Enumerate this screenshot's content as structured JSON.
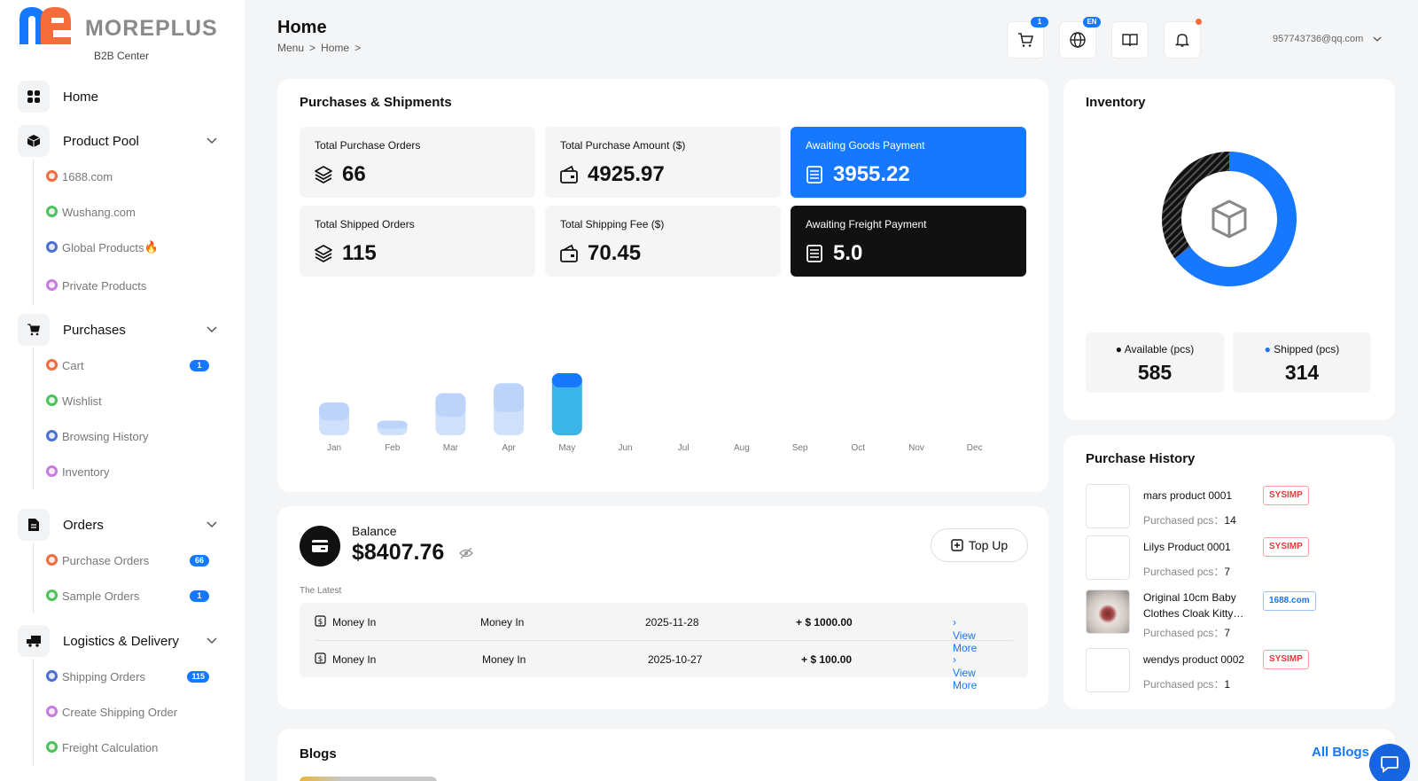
{
  "brand": {
    "name": "MOREPLUS",
    "subtitle": "B2B Center",
    "colors": {
      "blue": "#1677ff",
      "orange": "#f56b3a"
    }
  },
  "header": {
    "title": "Home",
    "breadcrumb": [
      "Menu",
      ">",
      "Home",
      ">"
    ],
    "user_email": "957743736@qq.com",
    "cart_badge": "1",
    "lang_badge": "EN"
  },
  "sidebar": {
    "home": {
      "label": "Home",
      "icon": "grid-icon"
    },
    "product_pool": {
      "label": "Product Pool",
      "items": [
        {
          "label": "1688.com",
          "color": "#f26b3a"
        },
        {
          "label": "Wushang.com",
          "color": "#4cc35a"
        },
        {
          "label": "Global Products",
          "color": "#4a6fd8",
          "extra": "🔥"
        },
        {
          "label": "Private Products",
          "color": "#c77be0"
        }
      ]
    },
    "purchases": {
      "label": "Purchases",
      "items": [
        {
          "label": "Cart",
          "color": "#f26b3a",
          "badge": "1"
        },
        {
          "label": "Wishlist",
          "color": "#4cc35a"
        },
        {
          "label": "Browsing History",
          "color": "#4a6fd8"
        },
        {
          "label": "Inventory",
          "color": "#c77be0"
        }
      ]
    },
    "orders": {
      "label": "Orders",
      "items": [
        {
          "label": "Purchase Orders",
          "color": "#f26b3a",
          "badge": "66"
        },
        {
          "label": "Sample Orders",
          "color": "#4cc35a",
          "badge": "1"
        }
      ]
    },
    "logistics": {
      "label": "Logistics & Delivery",
      "items": [
        {
          "label": "Shipping Orders",
          "color": "#4a6fd8",
          "badge": "115"
        },
        {
          "label": "Create Shipping Order",
          "color": "#c77be0"
        },
        {
          "label": "Freight Calculation",
          "color": "#4cc35a"
        }
      ]
    }
  },
  "purchases_shipments": {
    "title": "Purchases & Shipments",
    "stats": [
      {
        "label": "Total Purchase Orders",
        "value": "66",
        "icon": "layers-icon"
      },
      {
        "label": "Total Purchase Amount ($)",
        "value": "4925.97",
        "icon": "wallet-icon"
      },
      {
        "label": "Awaiting Goods Payment",
        "value": "3955.22",
        "icon": "receipt-icon"
      },
      {
        "label": "Total Shipped Orders",
        "value": "115",
        "icon": "layers-icon"
      },
      {
        "label": "Total Shipping Fee ($)",
        "value": "70.45",
        "icon": "wallet-icon"
      },
      {
        "label": "Awaiting Freight Payment",
        "value": "5.0",
        "icon": "receipt-icon"
      }
    ]
  },
  "chart_data": {
    "type": "bar",
    "categories": [
      "Jan",
      "Feb",
      "Mar",
      "Apr",
      "May",
      "Jun",
      "Jul",
      "Aug",
      "Sep",
      "Oct",
      "Nov",
      "Dec"
    ],
    "series": [
      {
        "values": [
          36,
          16,
          46,
          57,
          68,
          0,
          0,
          0,
          0,
          0,
          0,
          0
        ]
      }
    ],
    "highlight": "May",
    "colors": {
      "normal": "#cfe0fb",
      "highlight": "#3bb5e8"
    }
  },
  "balance": {
    "label": "Balance",
    "value": "$8407.76",
    "topup_label": "Top Up",
    "latest_label": "The Latest",
    "transactions": [
      {
        "type": "Money In",
        "desc": "Money In",
        "date": "2025-11-28",
        "amount": "+ $ 1000.00",
        "link": "View More"
      },
      {
        "type": "Money In",
        "desc": "Money In",
        "date": "2025-10-27",
        "amount": "+ $ 100.00",
        "link": "View More"
      }
    ]
  },
  "inventory": {
    "title": "Inventory",
    "available_label": "Available (pcs)",
    "available": 585,
    "shipped_label": "Shipped (pcs)",
    "shipped": 314
  },
  "purchase_history": {
    "title": "Purchase History",
    "pcs_label": "Purchased pcs：",
    "items": [
      {
        "name": "mars product 0001",
        "pcs": "14",
        "tag": "SYSIMP"
      },
      {
        "name": "Lilys Product 0001",
        "pcs": "7",
        "tag": "SYSIMP"
      },
      {
        "name": "Original 10cm Baby Clothes Cloak Kitty…",
        "pcs": "7",
        "tag": "1688.com"
      },
      {
        "name": "wendys product 0002",
        "pcs": "1",
        "tag": "SYSIMP"
      }
    ]
  },
  "blogs": {
    "title": "Blogs",
    "all_label": "All Blogs"
  }
}
